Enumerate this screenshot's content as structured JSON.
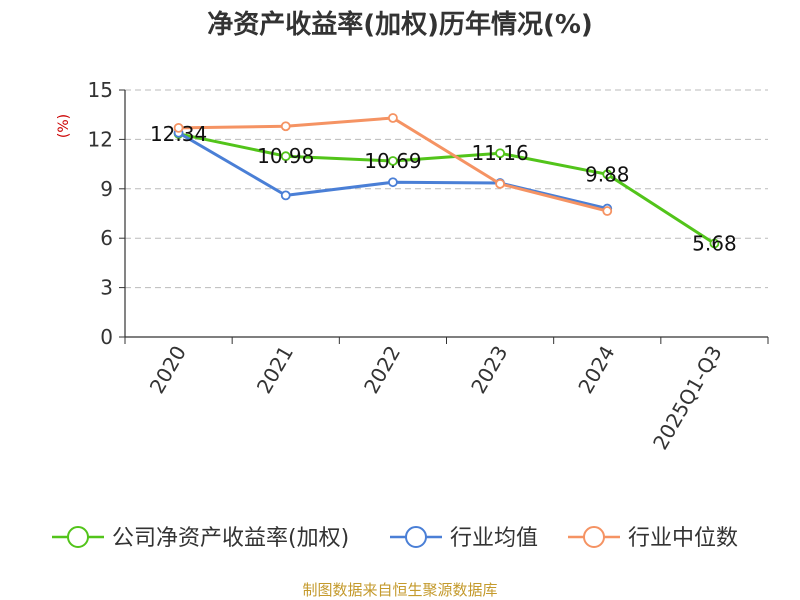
{
  "chart_data": {
    "type": "line",
    "title": "净资产收益率(加权)历年情况(%)",
    "ylabel": "(%)",
    "xlabel": "",
    "ylim": [
      0,
      15
    ],
    "yticks": [
      0,
      3,
      6,
      9,
      12,
      15
    ],
    "categories": [
      "2020",
      "2021",
      "2022",
      "2023",
      "2024",
      "2025Q1-Q3"
    ],
    "series": [
      {
        "name": "公司净资产收益率(加权)",
        "color": "#52c41a",
        "values": [
          12.34,
          10.98,
          10.69,
          11.16,
          9.88,
          5.68
        ],
        "labels": [
          "12.34",
          "10.98",
          "10.69",
          "11.16",
          "9.88",
          "5.68"
        ]
      },
      {
        "name": "行业均值",
        "color": "#4a7fd6",
        "values": [
          12.4,
          8.6,
          9.4,
          9.35,
          7.8,
          null
        ]
      },
      {
        "name": "行业中位数",
        "color": "#f59363",
        "values": [
          12.7,
          12.8,
          13.3,
          9.3,
          7.65,
          null
        ]
      }
    ],
    "grid": true,
    "legend": "bottom",
    "source": "制图数据来自恒生聚源数据库"
  }
}
